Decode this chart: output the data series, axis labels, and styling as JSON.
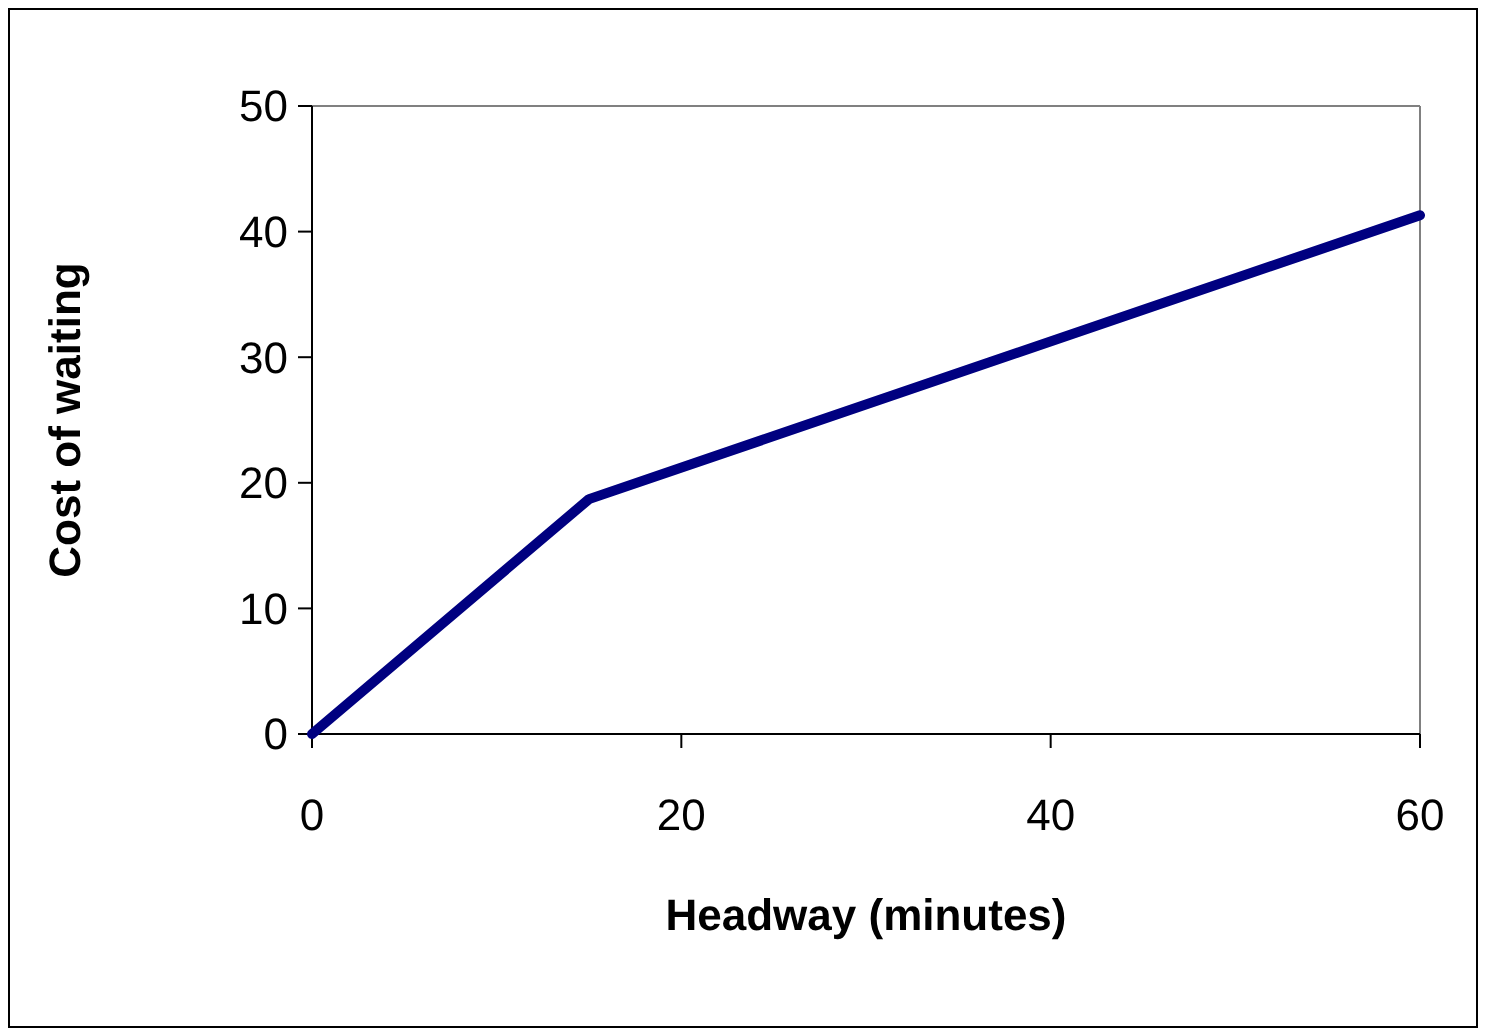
{
  "chart_data": {
    "type": "line",
    "xlabel": "Headway (minutes)",
    "ylabel": "Cost of waiting",
    "x": [
      0,
      15,
      60
    ],
    "series": [
      {
        "color": "#000080",
        "values": [
          0,
          18.7,
          41.3
        ]
      }
    ],
    "xlim": [
      0,
      60
    ],
    "xticks": [
      0,
      20,
      40,
      60
    ],
    "ylim": [
      0,
      50
    ],
    "yticks": [
      0,
      10,
      20,
      30,
      40,
      50
    ],
    "grid": false,
    "marker": "none",
    "line_style": "solid"
  }
}
